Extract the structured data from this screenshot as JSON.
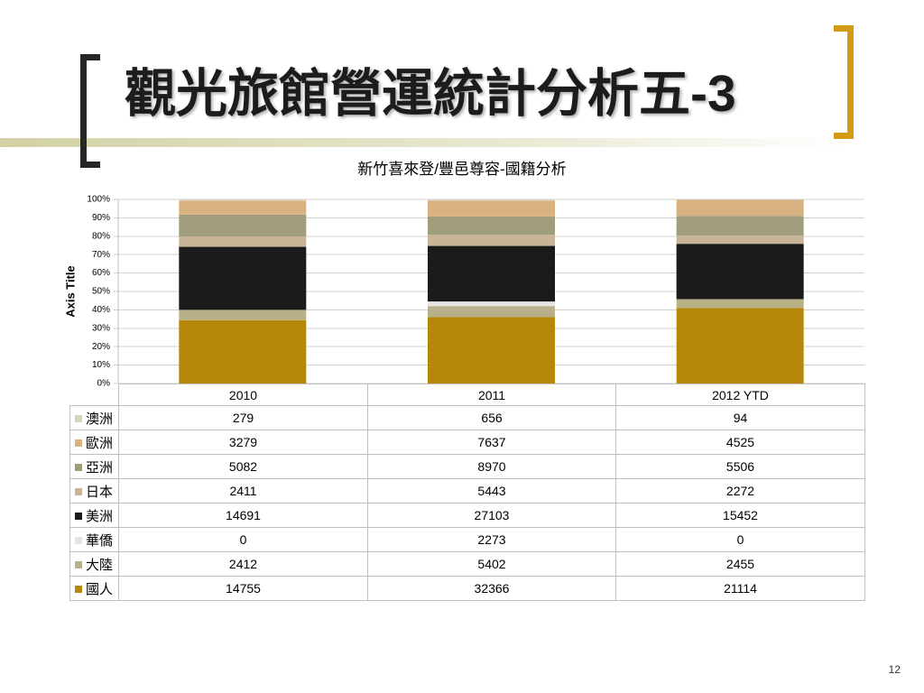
{
  "slide": {
    "title": "觀光旅館營運統計分析五-3",
    "page_number": "12"
  },
  "theme": {
    "bracket_left_color": "#262626",
    "bracket_right_color": "#d29c12",
    "title_band_color": "#d3d1a4"
  },
  "chart_data": {
    "type": "bar",
    "stacking": "percent",
    "title": "新竹喜來登/豐邑尊容-國籍分析",
    "ylabel": "Axis Title",
    "ylim": [
      0,
      100
    ],
    "y_tick_labels": [
      "0%",
      "10%",
      "20%",
      "30%",
      "40%",
      "50%",
      "60%",
      "70%",
      "80%",
      "90%",
      "100%"
    ],
    "grid": true,
    "legend": "data-table",
    "categories": [
      "2010",
      "2011",
      "2012 YTD"
    ],
    "series": [
      {
        "name": "澳洲",
        "color": "#d8d3c3",
        "values": [
          279,
          656,
          94
        ]
      },
      {
        "name": "歐洲",
        "color": "#d9b282",
        "values": [
          3279,
          7637,
          4525
        ]
      },
      {
        "name": "亞洲",
        "color": "#a09d7c",
        "values": [
          5082,
          8970,
          5506
        ]
      },
      {
        "name": "日本",
        "color": "#c9b497",
        "values": [
          2411,
          5443,
          2272
        ]
      },
      {
        "name": "美洲",
        "color": "#1b1b1b",
        "values": [
          14691,
          27103,
          15452
        ]
      },
      {
        "name": "華僑",
        "color": "#e4e4e2",
        "values": [
          0,
          2273,
          0
        ]
      },
      {
        "name": "大陸",
        "color": "#b8b089",
        "values": [
          2412,
          5402,
          2455
        ]
      },
      {
        "name": "國人",
        "color": "#b5880c",
        "values": [
          14755,
          32366,
          21114
        ]
      }
    ]
  }
}
